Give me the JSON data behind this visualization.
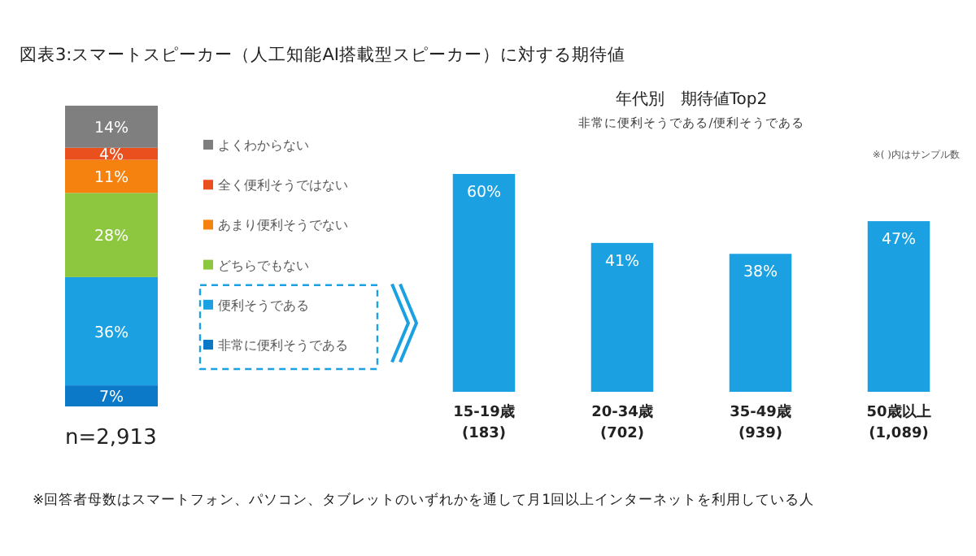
{
  "chart_data": [
    {
      "type": "bar",
      "title": "図表3:スマートスピーカー（人工知能AI搭載型スピーカー）に対する期待値",
      "stacked": true,
      "legend": "right",
      "categories": [
        null
      ],
      "series": [
        {
          "name": "非常に便利そうである",
          "color": "#0b79c7",
          "values": [
            7
          ],
          "value_labels": [
            "7%"
          ]
        },
        {
          "name": "便利そうである",
          "color": "#1ba1e2",
          "values": [
            36
          ],
          "value_labels": [
            "36%"
          ]
        },
        {
          "name": "どちらでもない",
          "color": "#8dc63f",
          "values": [
            28
          ],
          "value_labels": [
            "28%"
          ]
        },
        {
          "name": "あまり便利そうでない",
          "color": "#f5820f",
          "values": [
            11
          ],
          "value_labels": [
            "11%"
          ]
        },
        {
          "name": "全く便利そうではない",
          "color": "#e9501e",
          "values": [
            4
          ],
          "value_labels": [
            "4%"
          ]
        },
        {
          "name": "よくわからない",
          "color": "#7f7f7f",
          "values": [
            14
          ],
          "value_labels": [
            "14%"
          ]
        }
      ],
      "annotations": [
        "n=2,913",
        "※回答者母数はスマートフォン、パソコン、タブレットのいずれかを通して月1回以上インターネットを利用している人"
      ]
    },
    {
      "type": "bar",
      "title": "年代別　期待値Top2",
      "subtitle": "非常に便利そうである/便利そうである",
      "categories": [
        "15-19歳\n(183)",
        "20-34歳\n(702)",
        "35-49歳\n(939)",
        "50歳以上\n(1,089)"
      ],
      "series": [
        {
          "color": "#1ba1e2",
          "values": [
            60,
            41,
            38,
            47
          ],
          "value_labels": [
            "60%",
            "41%",
            "38%",
            "47%"
          ]
        }
      ],
      "annotations": [
        "※( )内はサンプル数"
      ]
    }
  ]
}
